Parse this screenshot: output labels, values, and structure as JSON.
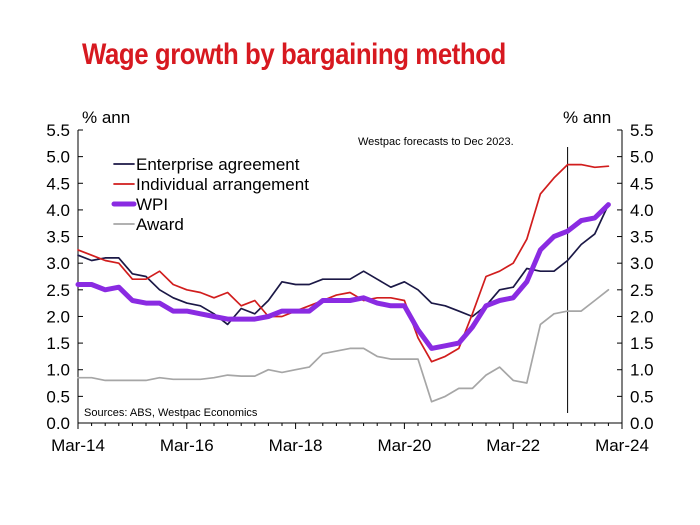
{
  "title": "Wage growth by bargaining method",
  "colors": {
    "title": "#d71920",
    "enterprise": "#1b1846",
    "individual": "#d11d1d",
    "wpi": "#8a2be2",
    "award": "#a6a6a6",
    "axis": "#000000"
  },
  "chart_data": {
    "type": "line",
    "title": "Wage growth by bargaining method",
    "ylabel_left": "% ann",
    "ylabel_right": "% ann",
    "ylim": [
      0,
      5.5
    ],
    "yticks": [
      "0.0",
      "0.5",
      "1.0",
      "1.5",
      "2.0",
      "2.5",
      "3.0",
      "3.5",
      "4.0",
      "4.5",
      "5.0",
      "5.5"
    ],
    "x_tick_labels": [
      "Mar-14",
      "Mar-16",
      "Mar-18",
      "Mar-20",
      "Mar-22",
      "Mar-24"
    ],
    "x_start": "Mar-14",
    "x_end": "Mar-24",
    "frequency": "quarterly",
    "forecast_note": "Westpac forecasts to Dec 2023.",
    "forecast_start": "Mar-23",
    "source": "Sources: ABS, Westpac Economics",
    "legend_position": "top-left",
    "grid": false,
    "series": [
      {
        "name": "Enterprise agreement",
        "color": "#1b1846",
        "values": [
          3.15,
          3.05,
          3.1,
          3.1,
          2.8,
          2.75,
          2.5,
          2.35,
          2.25,
          2.2,
          2.05,
          1.85,
          2.15,
          2.05,
          2.3,
          2.65,
          2.6,
          2.6,
          2.7,
          2.7,
          2.7,
          2.85,
          2.7,
          2.55,
          2.65,
          2.5,
          2.25,
          2.2,
          2.1,
          2.0,
          2.2,
          2.5,
          2.55,
          2.9,
          2.85,
          2.85,
          3.05,
          3.35,
          3.55,
          4.1
        ]
      },
      {
        "name": "Individual arrangement",
        "color": "#d11d1d",
        "values": [
          3.25,
          3.15,
          3.05,
          3.0,
          2.7,
          2.7,
          2.85,
          2.6,
          2.5,
          2.45,
          2.35,
          2.45,
          2.2,
          2.3,
          2.0,
          2.0,
          2.1,
          2.2,
          2.3,
          2.4,
          2.45,
          2.3,
          2.35,
          2.35,
          2.3,
          1.6,
          1.15,
          1.25,
          1.4,
          2.05,
          2.75,
          2.85,
          3.0,
          3.45,
          4.3,
          4.6,
          4.85,
          4.85,
          4.8,
          4.82
        ]
      },
      {
        "name": "WPI",
        "color": "#8a2be2",
        "values": [
          2.6,
          2.6,
          2.5,
          2.55,
          2.3,
          2.25,
          2.25,
          2.1,
          2.1,
          2.05,
          2.0,
          1.95,
          1.95,
          1.95,
          2.0,
          2.1,
          2.1,
          2.1,
          2.3,
          2.3,
          2.3,
          2.35,
          2.25,
          2.2,
          2.2,
          1.75,
          1.4,
          1.45,
          1.5,
          1.8,
          2.2,
          2.3,
          2.35,
          2.65,
          3.25,
          3.5,
          3.6,
          3.8,
          3.85,
          4.1
        ]
      },
      {
        "name": "Award",
        "color": "#a6a6a6",
        "values": [
          0.85,
          0.85,
          0.8,
          0.8,
          0.8,
          0.8,
          0.85,
          0.82,
          0.82,
          0.82,
          0.85,
          0.9,
          0.88,
          0.88,
          1.0,
          0.95,
          1.0,
          1.05,
          1.3,
          1.35,
          1.4,
          1.4,
          1.25,
          1.2,
          1.2,
          1.2,
          0.4,
          0.5,
          0.65,
          0.65,
          0.9,
          1.05,
          0.8,
          0.75,
          1.85,
          2.05,
          2.1,
          2.1,
          2.3,
          2.5
        ]
      }
    ]
  }
}
